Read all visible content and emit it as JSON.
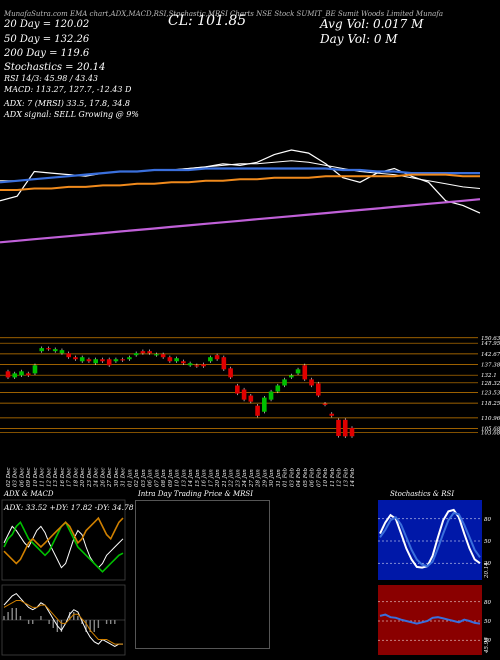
{
  "header": {
    "top_line": "MunafaSutra.com  EMA chart,ADX,MACD,RSI,Stochastic,MRSI Charts NSE Stock SUMIT_BE Sumit Woods Limited Munafa",
    "sma20": "20 Day = 120.02",
    "sma50": "50 Day = 132.26",
    "sma200": "200 Day = 119.6",
    "close": "CL: 101.85",
    "avg_vol": "Avg Vol: 0.017 M",
    "day_vol": "Day Vol: 0  M",
    "stoch": "Stochastics = 20.14",
    "rsi": "RSI 14/3: 45.98 / 43.43",
    "macd": "MACD: 113.27, 127.7, -12.43 D",
    "adx": "ADX: 7               (MRSI) 33.5,  17.8,  34.8",
    "adx_signal": "ADX  signal: SELL Growing @ 9%"
  },
  "colors": {
    "sma20": "#ffffff",
    "sma50": "#3a6fdc",
    "sma200": "#c060d8",
    "ema_orange": "#f08a1c",
    "bull": "#00c000",
    "bear": "#e00000",
    "grid": "#d08000"
  },
  "chart_data": [
    {
      "type": "line",
      "name": "EMA chart",
      "series": [
        {
          "name": "price",
          "color": "#ffffff",
          "values": [
            112,
            115,
            131,
            130,
            129,
            128,
            130,
            131,
            131,
            132,
            132,
            133,
            134,
            136,
            135,
            137,
            142,
            145,
            143,
            136,
            127,
            124,
            130,
            133,
            128,
            124,
            112,
            109,
            104
          ]
        },
        {
          "name": "sma20",
          "color": "#ffffff",
          "values": [
            125,
            125,
            126,
            127,
            128,
            129,
            130,
            131,
            131,
            132,
            132,
            133,
            134,
            135,
            136,
            136,
            137,
            138,
            137,
            135,
            133,
            131,
            130,
            129,
            127,
            125,
            123,
            121,
            120
          ]
        },
        {
          "name": "sma50",
          "color": "#3a6fdc",
          "values": [
            124,
            125,
            126,
            127,
            128,
            129,
            130,
            131,
            131,
            132,
            132,
            132,
            133,
            133,
            133,
            133,
            133,
            133,
            133,
            133,
            132,
            132,
            131,
            131,
            130,
            130,
            130,
            130,
            130
          ]
        },
        {
          "name": "ema",
          "color": "#f08a1c",
          "values": [
            119,
            119,
            120,
            120,
            121,
            121,
            122,
            122,
            123,
            123,
            124,
            124,
            125,
            125,
            126,
            126,
            127,
            127,
            127,
            128,
            128,
            128,
            128,
            128,
            129,
            129,
            129,
            128,
            128
          ]
        },
        {
          "name": "sma200",
          "color": "#c060d8",
          "values": [
            85,
            86,
            87,
            88,
            89,
            90,
            91,
            92,
            93,
            94,
            95,
            96,
            97,
            98,
            99,
            100,
            101,
            102,
            103,
            104,
            105,
            106,
            107,
            108,
            109,
            110,
            111,
            112,
            113
          ]
        }
      ]
    },
    {
      "type": "candlestick",
      "name": "Price",
      "price_labels": [
        "150.63",
        "147.95",
        "142.67",
        "137.38",
        "132.1",
        "128.32",
        "123.53",
        "118.25",
        "110.96",
        "105.68",
        "103.68"
      ],
      "dates": [
        "02 Dec",
        "03 Dec",
        "06 Dec",
        "09 Dec",
        "10 Dec",
        "11 Dec",
        "12 Dec",
        "13 Dec",
        "16 Dec",
        "17 Dec",
        "18 Dec",
        "20 Dec",
        "23 Dec",
        "24 Dec",
        "26 Dec",
        "27 Dec",
        "30 Dec",
        "31 Dec",
        "01 Jan",
        "02 Jan",
        "03 Jan",
        "06 Jan",
        "07 Jan",
        "08 Jan",
        "09 Jan",
        "10 Jan",
        "13 Jan",
        "14 Jan",
        "15 Jan",
        "16 Jan",
        "17 Jan",
        "20 Jan",
        "21 Jan",
        "22 Jan",
        "23 Jan",
        "24 Jan",
        "27 Jan",
        "28 Jan",
        "29 Jan",
        "30 Jan",
        "31 Jan",
        "01 Feb",
        "03 Feb",
        "04 Feb",
        "05 Feb",
        "06 Feb",
        "07 Feb",
        "10 Feb",
        "11 Feb",
        "12 Feb",
        "13 Feb",
        "14 Feb"
      ],
      "candles": [
        {
          "o": 134.0,
          "c": 131.0
        },
        {
          "o": 131.0,
          "c": 133.0
        },
        {
          "o": 132.0,
          "c": 134.0
        },
        {
          "o": 133.0,
          "c": 132.0
        },
        {
          "o": 133.0,
          "c": 137.0
        },
        {
          "o": 144.0,
          "c": 145.5
        },
        {
          "o": 145.5,
          "c": 145.0
        },
        {
          "o": 144.0,
          "c": 145.0
        },
        {
          "o": 143.0,
          "c": 144.5
        },
        {
          "o": 143.0,
          "c": 141.0
        },
        {
          "o": 141.0,
          "c": 140.0
        },
        {
          "o": 139.0,
          "c": 141.0
        },
        {
          "o": 140.0,
          "c": 139.0
        },
        {
          "o": 138.0,
          "c": 140.0
        },
        {
          "o": 140.0,
          "c": 139.0
        },
        {
          "o": 140.0,
          "c": 137.0
        },
        {
          "o": 139.0,
          "c": 140.0
        },
        {
          "o": 140.0,
          "c": 139.5
        },
        {
          "o": 140.0,
          "c": 141.0
        },
        {
          "o": 142.0,
          "c": 143.0
        },
        {
          "o": 144.0,
          "c": 143.0
        },
        {
          "o": 144.0,
          "c": 143.0
        },
        {
          "o": 142.0,
          "c": 142.5
        },
        {
          "o": 142.5,
          "c": 141.0
        },
        {
          "o": 141.0,
          "c": 139.0
        },
        {
          "o": 139.0,
          "c": 140.5
        },
        {
          "o": 139.0,
          "c": 138.0
        },
        {
          "o": 137.0,
          "c": 138.0
        },
        {
          "o": 137.0,
          "c": 136.5
        },
        {
          "o": 137.5,
          "c": 136.5
        },
        {
          "o": 139.0,
          "c": 141.0
        },
        {
          "o": 142.0,
          "c": 140.0
        },
        {
          "o": 141.0,
          "c": 135.0
        },
        {
          "o": 135.5,
          "c": 131.0
        },
        {
          "o": 127.0,
          "c": 123.0
        },
        {
          "o": 125.0,
          "c": 120.0
        },
        {
          "o": 122.0,
          "c": 119.0
        },
        {
          "o": 117.0,
          "c": 112.0
        },
        {
          "o": 114.0,
          "c": 121.0
        },
        {
          "o": 120.0,
          "c": 124.0
        },
        {
          "o": 124.0,
          "c": 127.0
        },
        {
          "o": 127.0,
          "c": 130.0
        },
        {
          "o": 131.0,
          "c": 132.0
        },
        {
          "o": 133.0,
          "c": 135.0
        },
        {
          "o": 137.0,
          "c": 130.0
        },
        {
          "o": 130.0,
          "c": 127.0
        },
        {
          "o": 128.0,
          "c": 122.0
        },
        {
          "o": 118.0,
          "c": 117.5
        },
        {
          "o": 113.0,
          "c": 112.0
        },
        {
          "o": 110.0,
          "c": 102.0
        },
        {
          "o": 110.0,
          "c": 101.8
        },
        {
          "o": 106.0,
          "c": 101.85
        }
      ]
    },
    {
      "type": "line",
      "name": "ADX & MACD",
      "title": "ADX  & MACD",
      "label": "ADX: 33.52  +DY: 17.82  -DY: 34.78",
      "series": [
        {
          "name": "ADX",
          "color": "#ffffff",
          "values": [
            22,
            26,
            30,
            28,
            25,
            22,
            20,
            24,
            28,
            30,
            27,
            22,
            18,
            14,
            10,
            12,
            18,
            24,
            28,
            26,
            20,
            15,
            12,
            10,
            12,
            16,
            18,
            20,
            22,
            24
          ]
        },
        {
          "name": "+DY",
          "color": "#00c000",
          "values": [
            20,
            24,
            26,
            30,
            32,
            28,
            24,
            22,
            20,
            18,
            16,
            18,
            22,
            26,
            30,
            32,
            28,
            24,
            20,
            18,
            16,
            14,
            12,
            10,
            8,
            10,
            12,
            14,
            16,
            17
          ]
        },
        {
          "name": "-DY",
          "color": "#d08000",
          "values": [
            18,
            16,
            14,
            12,
            14,
            18,
            22,
            24,
            22,
            20,
            22,
            24,
            26,
            28,
            30,
            32,
            30,
            26,
            22,
            24,
            28,
            30,
            32,
            34,
            30,
            26,
            24,
            28,
            32,
            34
          ]
        }
      ]
    },
    {
      "type": "line",
      "name": "MACD",
      "series": [
        {
          "name": "MACD",
          "color": "#ffffff",
          "values": [
            5,
            7,
            9,
            10,
            8,
            6,
            4,
            3,
            4,
            6,
            5,
            2,
            -1,
            -4,
            -6,
            -3,
            1,
            3,
            2,
            -2,
            -6,
            -9,
            -11,
            -12,
            -10,
            -11,
            -12,
            -13,
            -12,
            -12
          ]
        },
        {
          "name": "Signal",
          "color": "#d08000",
          "values": [
            4,
            5,
            6,
            7,
            7,
            6,
            5,
            4,
            4,
            5,
            5,
            3,
            1,
            -1,
            -3,
            -3,
            -1,
            1,
            1,
            -1,
            -3,
            -6,
            -8,
            -10,
            -10,
            -10,
            -11,
            -12,
            -12,
            -12
          ]
        }
      ]
    },
    {
      "type": "other",
      "name": "Intra Day Trading Price & MRSI",
      "title": "Intra Day Trading Price  & MRSI"
    },
    {
      "type": "line",
      "name": "Stochastics & RSI",
      "title": "Stochastics & RSI",
      "yticks": [
        "80",
        "50",
        "20"
      ],
      "end_label": "20.14",
      "series": [
        {
          "name": "%K",
          "color": "#ffffff",
          "values": [
            60,
            75,
            85,
            80,
            60,
            40,
            25,
            15,
            14,
            16,
            30,
            55,
            78,
            90,
            92,
            82,
            60,
            40,
            25,
            20
          ]
        },
        {
          "name": "%D",
          "color": "#3a6fdc",
          "values": [
            55,
            65,
            78,
            82,
            72,
            55,
            38,
            25,
            18,
            16,
            22,
            40,
            60,
            78,
            88,
            86,
            72,
            55,
            38,
            28
          ]
        }
      ]
    },
    {
      "type": "line",
      "name": "RSI",
      "yticks": [
        "80",
        "50",
        "20"
      ],
      "end_label": "45.98",
      "series": [
        {
          "name": "RSI",
          "color": "#3a6fdc",
          "values": [
            58,
            60,
            56,
            55,
            52,
            50,
            48,
            46,
            48,
            50,
            55,
            56,
            54,
            52,
            50,
            48,
            52,
            50,
            47,
            46
          ]
        }
      ]
    }
  ]
}
